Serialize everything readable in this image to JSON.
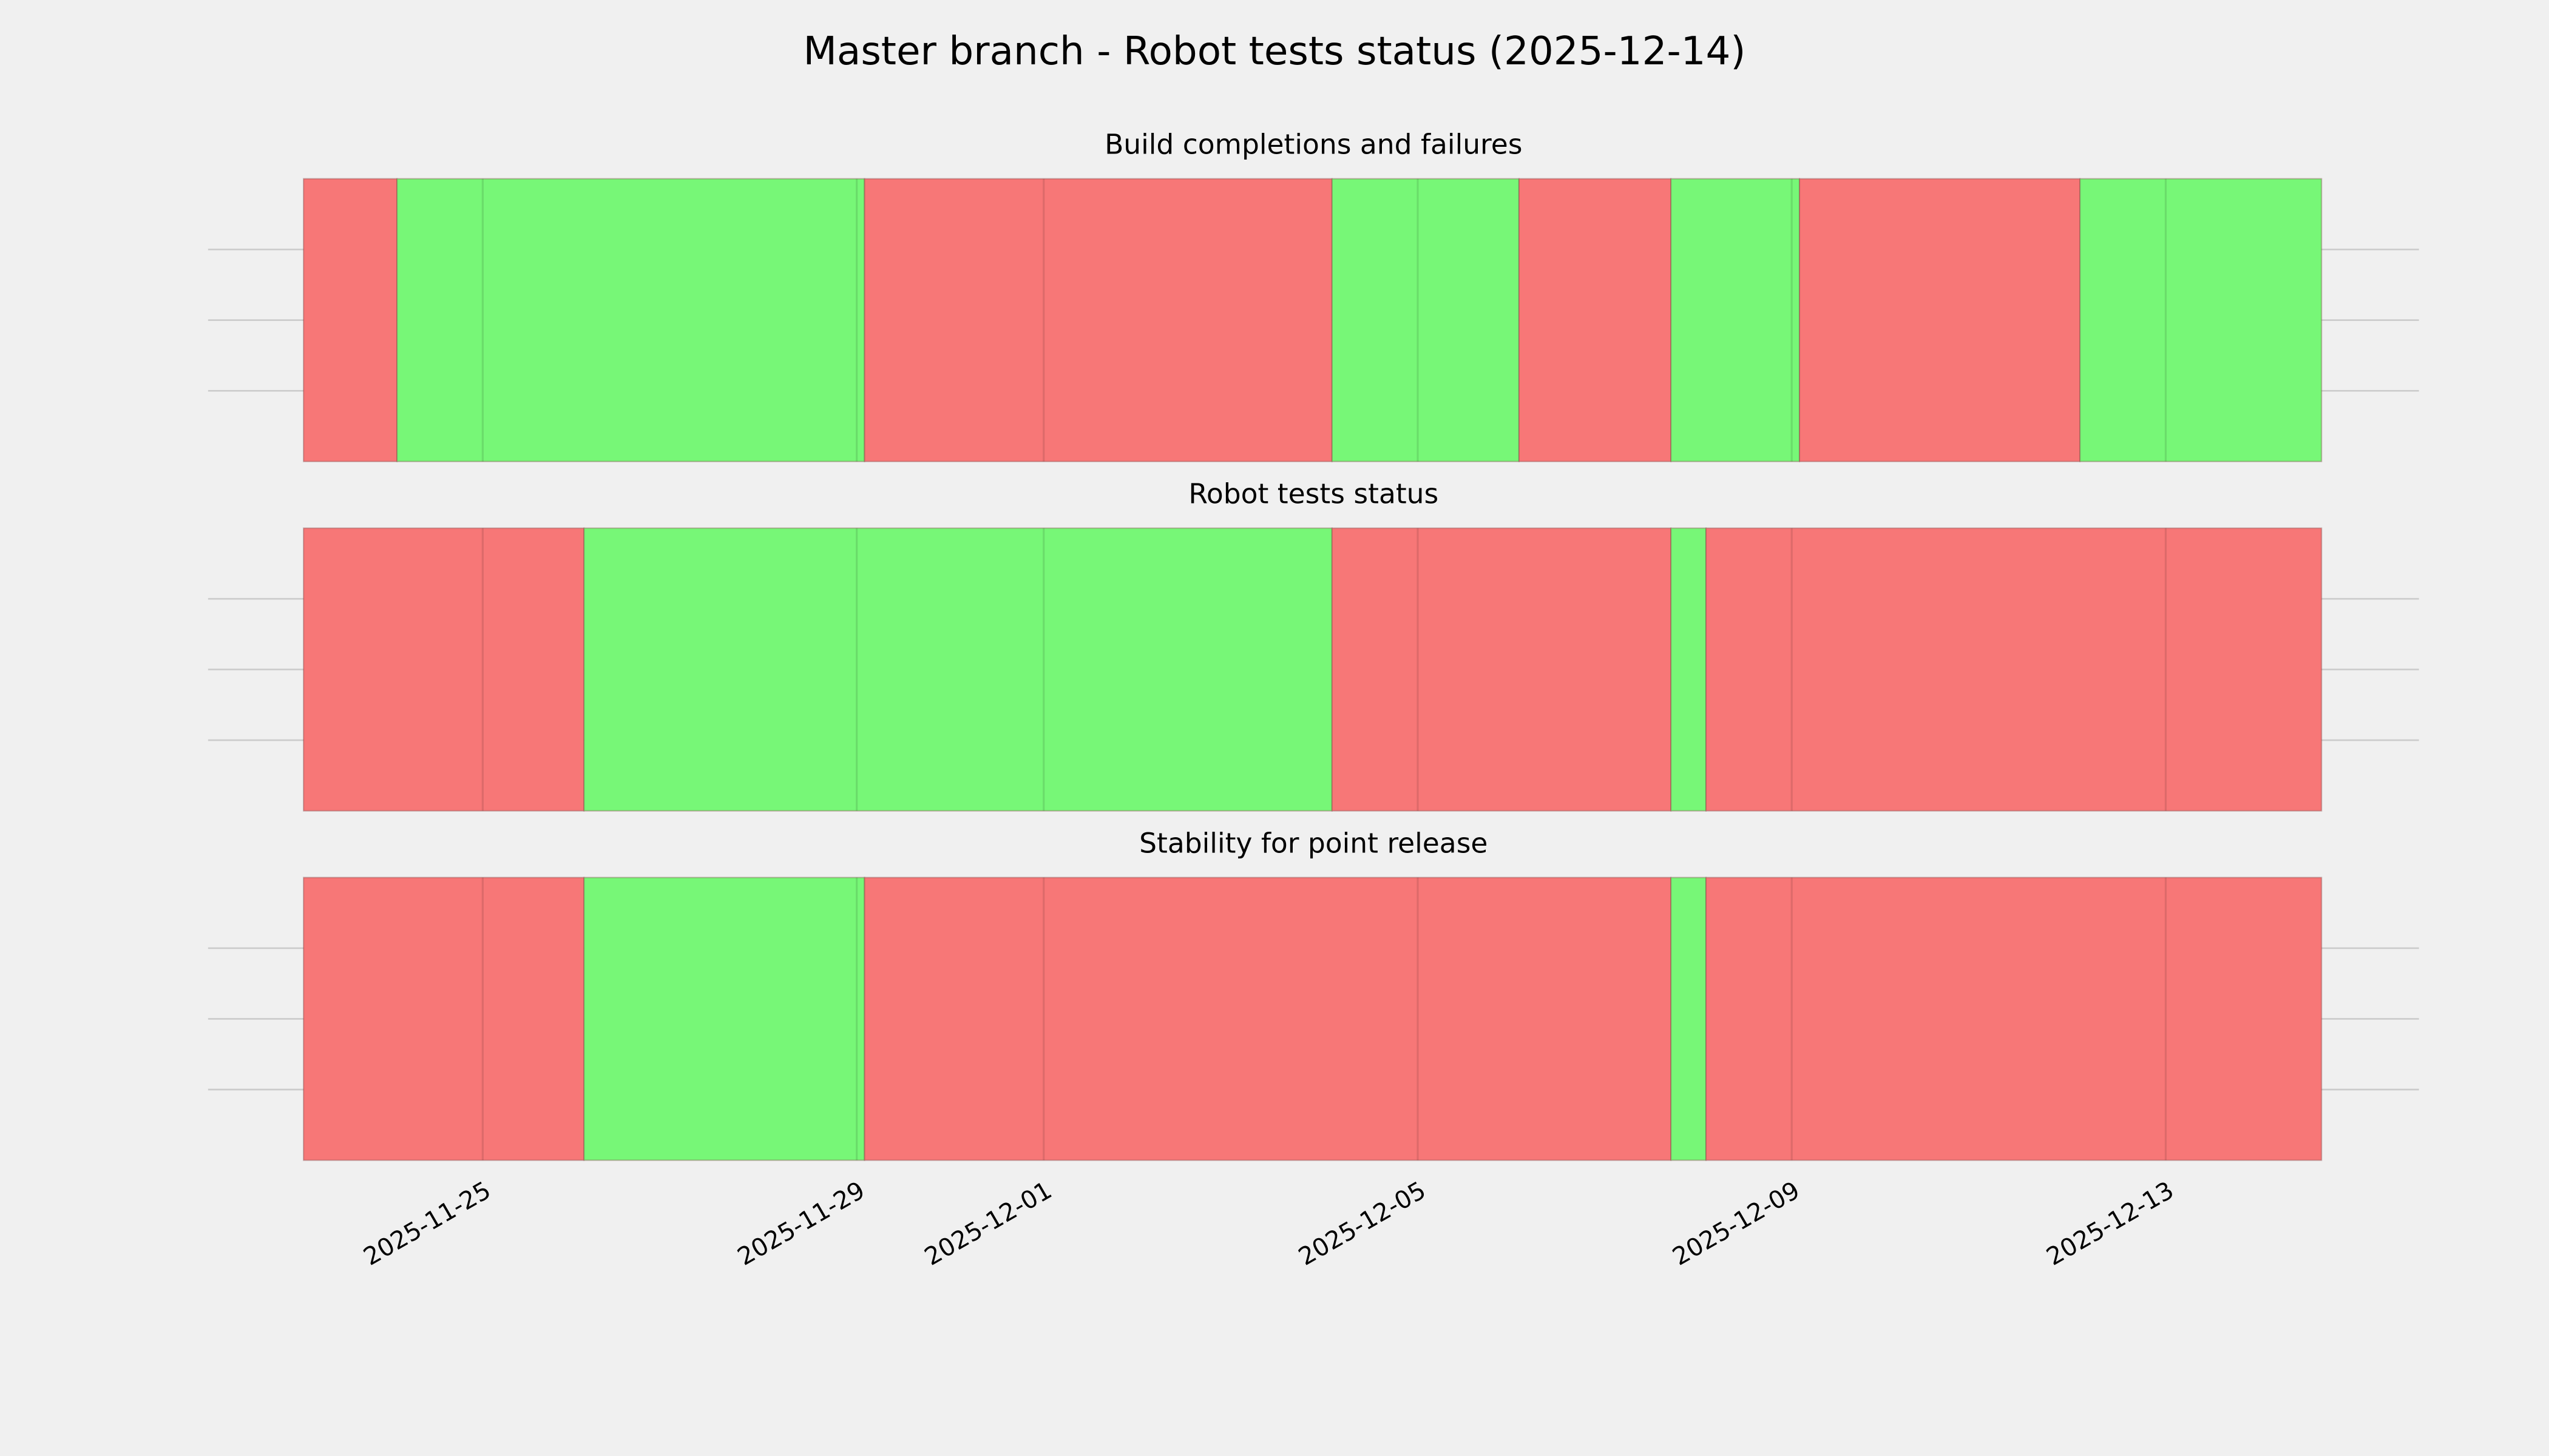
{
  "title": "Master branch - Robot tests status (2025-12-14)",
  "xlim": [
    "2025-11-22T01:30",
    "2025-12-15T17:00"
  ],
  "xticks": [
    {
      "value": "2025-11-25T00:00",
      "label": "2025-11-25"
    },
    {
      "value": "2025-11-29T00:00",
      "label": "2025-11-29"
    },
    {
      "value": "2025-12-01T00:00",
      "label": "2025-12-01"
    },
    {
      "value": "2025-12-05T00:00",
      "label": "2025-12-05"
    },
    {
      "value": "2025-12-09T00:00",
      "label": "2025-12-09"
    },
    {
      "value": "2025-12-13T00:00",
      "label": "2025-12-13"
    }
  ],
  "chart_data": [
    {
      "type": "timeline",
      "title": "Build completions and failures",
      "x": [
        "2025-11-23T02:00",
        "2025-11-24T02:00",
        "2025-11-29T02:00",
        "2025-12-04T02:00",
        "2025-12-06T02:00",
        "2025-12-07T17:00",
        "2025-12-09T02:00",
        "2025-12-12T02:00",
        "2025-12-14T16:00"
      ],
      "colors": [
        "#f77777",
        "#77f777",
        "#f77777",
        "#77f777",
        "#f77777",
        "#77f777",
        "#f77777",
        "#77f777"
      ],
      "ylim": [
        0,
        1
      ],
      "yticks": [
        0.25,
        0.5,
        0.75
      ],
      "grid": true
    },
    {
      "type": "timeline",
      "title": "Robot tests status",
      "x": [
        "2025-11-23T02:00",
        "2025-11-26T02:00",
        "2025-12-04T02:00",
        "2025-12-07T17:00",
        "2025-12-08T02:00",
        "2025-12-14T16:00"
      ],
      "colors": [
        "#f77777",
        "#77f777",
        "#f77777",
        "#77f777",
        "#f77777"
      ],
      "ylim": [
        0,
        1
      ],
      "yticks": [
        0.25,
        0.5,
        0.75
      ],
      "grid": true
    },
    {
      "type": "timeline",
      "title": "Stability for point release",
      "x": [
        "2025-11-23T02:00",
        "2025-11-26T02:00",
        "2025-11-29T02:00",
        "2025-12-07T17:00",
        "2025-12-08T02:00",
        "2025-12-14T16:00"
      ],
      "colors": [
        "#f77777",
        "#77f777",
        "#f77777",
        "#77f777",
        "#f77777"
      ],
      "ylim": [
        0,
        1
      ],
      "yticks": [
        0.25,
        0.5,
        0.75
      ],
      "grid": true
    }
  ]
}
